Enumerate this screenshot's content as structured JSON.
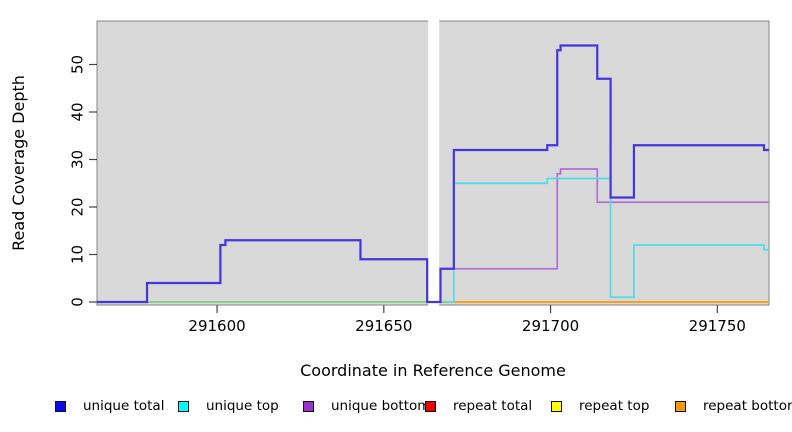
{
  "chart_data": {
    "type": "line",
    "subtype": "step-plot-read-coverage",
    "title": "",
    "xlabel": "Coordinate in Reference Genome",
    "ylabel": "Read Coverage Depth",
    "xlim": [
      291564,
      291765.5
    ],
    "ylim": [
      0,
      60
    ],
    "xticks": [
      291600,
      291650,
      291700,
      291750
    ],
    "yticks": [
      0,
      10,
      20,
      30,
      40,
      50
    ],
    "grid": false,
    "panel_bg": "#d9d9d9",
    "panel_border": "#858585",
    "gap_region": {
      "from": 291663.3,
      "to": 291666.6,
      "color": "#ffffff"
    },
    "baseline_blend": {
      "note": "overlapping zero-coverage lines left of the gap render as green",
      "color": "#7ccf7c",
      "from": 291564,
      "to": 291671,
      "value": 0
    },
    "series": [
      {
        "name": "unique total",
        "legend_color": "#0b0bf0",
        "line_color": "#4435e0",
        "width": 2.2,
        "zorder": 5,
        "steps": [
          [
            291564,
            0
          ],
          [
            291579,
            4
          ],
          [
            291601,
            12
          ],
          [
            291602.5,
            13
          ],
          [
            291643,
            9
          ],
          [
            291663,
            0
          ],
          [
            291667,
            7
          ],
          [
            291671,
            32
          ],
          [
            291699,
            33
          ],
          [
            291702,
            53
          ],
          [
            291703,
            54
          ],
          [
            291714,
            47
          ],
          [
            291718,
            22
          ],
          [
            291725,
            33
          ],
          [
            291764,
            32
          ]
        ],
        "end": 291765.5
      },
      {
        "name": "unique top",
        "legend_color": "#00ffff",
        "line_color": "#4fdde6",
        "width": 1.7,
        "zorder": 4,
        "steps": [
          [
            291669,
            0
          ],
          [
            291671,
            25
          ],
          [
            291699,
            26
          ],
          [
            291718,
            1
          ],
          [
            291725,
            12
          ],
          [
            291764,
            11
          ]
        ],
        "end": 291765.5
      },
      {
        "name": "unique bottom",
        "legend_color": "#9932cc",
        "line_color": "#b36fd6",
        "width": 1.7,
        "zorder": 3,
        "steps": [
          [
            291663,
            0
          ],
          [
            291667,
            7
          ],
          [
            291702,
            27
          ],
          [
            291703,
            28
          ],
          [
            291714,
            21
          ]
        ],
        "end": 291765.5
      },
      {
        "name": "repeat total",
        "legend_color": "#ee0000",
        "line_color": "#ee0000",
        "width": 1.7,
        "zorder": 1,
        "steps": [],
        "end": null
      },
      {
        "name": "repeat top",
        "legend_color": "#ffff00",
        "line_color": "#ffff00",
        "width": 1.7,
        "zorder": 1,
        "steps": [],
        "end": null
      },
      {
        "name": "repeat bottom",
        "legend_color": "#ff9800",
        "line_color": "#ff9800",
        "width": 1.7,
        "zorder": 1,
        "steps": [
          [
            291671,
            0
          ]
        ],
        "end": 291765.5
      }
    ]
  }
}
